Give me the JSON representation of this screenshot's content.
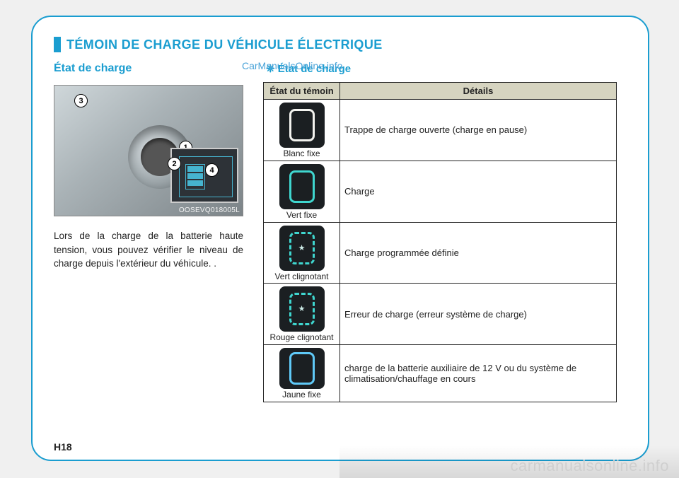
{
  "page": {
    "number": "H18",
    "watermark_top": "CarManualsOnline.info",
    "watermark_bottom": "carmanualsonline.info",
    "accent_color": "#1a9dd0",
    "border_color": "#1a9dd0"
  },
  "section_title": "TÉMOIN DE CHARGE DU VÉHICULE ÉLECTRIQUE",
  "left": {
    "heading": "État de charge",
    "photo_code": "OOSEVQ018005L",
    "callouts": [
      "1",
      "2",
      "3",
      "4"
    ],
    "body": "Lors de la charge de la batterie haute tension, vous pouvez vérifier le niveau de charge depuis l'extérieur du véhicule. ."
  },
  "right": {
    "heading": "❈ État de charge",
    "table": {
      "headers": {
        "state": "État du témoin",
        "details": "Détails"
      },
      "header_bg": "#d6d4c0",
      "rows": [
        {
          "icon_style": "solid-white",
          "caption": "Blanc fixe",
          "details": "Trappe de charge ouverte (charge en pause)"
        },
        {
          "icon_style": "solid-green",
          "caption": "Vert fixe",
          "details": "Charge"
        },
        {
          "icon_style": "dashed-green",
          "star": true,
          "caption": "Vert clignotant",
          "details": "Charge programmée définie"
        },
        {
          "icon_style": "dashed-red",
          "star": true,
          "caption": "Rouge clignotant",
          "details": "Erreur de charge (erreur système de charge)"
        },
        {
          "icon_style": "solid-yellow",
          "caption": "Jaune fixe",
          "details": "charge de la batterie auxiliaire de 12  V ou du système de climatisation/chauffage en cours"
        }
      ]
    }
  }
}
